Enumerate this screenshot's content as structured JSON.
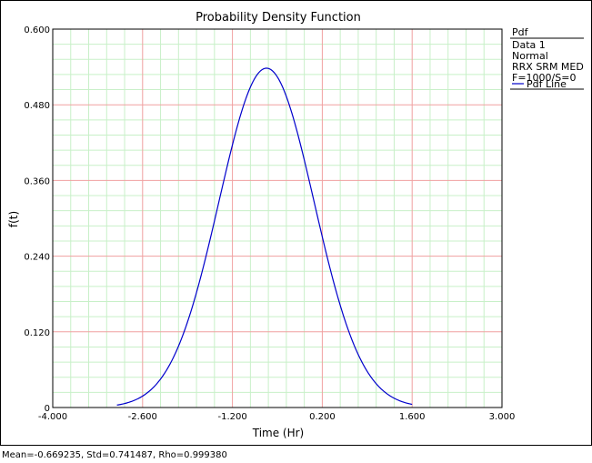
{
  "chart_data": {
    "type": "line",
    "title": "Probability Density Function",
    "xlabel": "Time (Hr)",
    "ylabel": "f(t)",
    "xlim": [
      -4.0,
      3.0
    ],
    "ylim": [
      0,
      0.6
    ],
    "x_tick_labels": [
      "-4.000",
      "-2.600",
      "-1.200",
      "0.200",
      "1.600",
      "3.000"
    ],
    "x_tick_values": [
      -4.0,
      -2.6,
      -1.2,
      0.2,
      1.6,
      3.0
    ],
    "y_tick_labels": [
      "0",
      "0.120",
      "0.240",
      "0.360",
      "0.480",
      "0.600"
    ],
    "y_tick_values": [
      0,
      0.12,
      0.24,
      0.36,
      0.48,
      0.6
    ],
    "grid": true,
    "distribution": {
      "family": "Normal",
      "mean": -0.669235,
      "std": 0.741487
    },
    "x_range": [
      -3.0,
      1.6
    ],
    "series": [
      {
        "name": "Pdf Line",
        "color": "#0000cc"
      }
    ],
    "legend": {
      "placement": "right",
      "title": "Pdf",
      "lines": [
        "Data 1",
        "Normal",
        "RRX SRM  MED",
        "F=1000/S=0"
      ],
      "entry": "Pdf Line"
    }
  },
  "status_text": "Mean=-0.669235, Std=0.741487, Rho=0.999380",
  "colors": {
    "major_grid": "#f0a0a0",
    "minor_grid": "#c8f0c8",
    "curve": "#0000cc"
  }
}
